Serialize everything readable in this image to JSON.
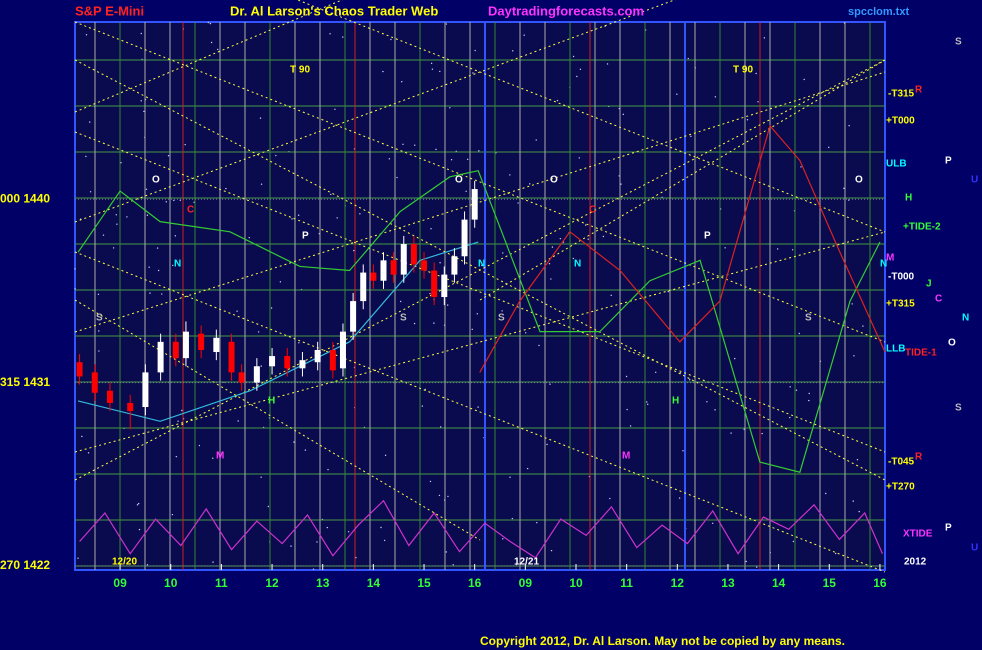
{
  "chart_data": {
    "type": "candlestick",
    "header": [
      "S&P E-Mini",
      "Dr. Al Larson's Chaos Trader Web",
      "Daytradingforecasts.com",
      "spcclom.txt"
    ],
    "copyright": "Copyright 2012, Dr. Al Larson. May not be copied by any means.",
    "xlim": [
      8.11,
      24.1
    ],
    "ylim": [
      1421.8,
      1448.7
    ],
    "xticks": [
      {
        "value": 9,
        "label": "09"
      },
      10,
      11,
      12,
      13,
      14,
      15,
      16,
      {
        "value": 17,
        "label": "09"
      },
      {
        "value": 18,
        "label": "10"
      },
      {
        "value": 19,
        "label": "11"
      },
      {
        "value": 20,
        "label": "12"
      },
      {
        "value": 21,
        "label": "13"
      },
      {
        "value": 22,
        "label": "14"
      },
      {
        "value": 23,
        "label": "15"
      },
      {
        "value": 24,
        "label": "16"
      }
    ],
    "yticks": [
      {
        "value": 1440,
        "label": "000 1440"
      },
      {
        "value": 1431,
        "label": "315 1431"
      },
      {
        "value": 1422,
        "label": "270 1422"
      }
    ],
    "candles": {
      "x": [
        8.2,
        8.5,
        8.8,
        9.2,
        9.5,
        9.8,
        10.1,
        10.3,
        10.6,
        10.9,
        11.2,
        11.4,
        11.7,
        12.0,
        12.3,
        12.6,
        12.9,
        13.2,
        13.4,
        13.6,
        13.8,
        14.0,
        14.2,
        14.4,
        14.6,
        14.8,
        15.0,
        15.2,
        15.4,
        15.6,
        15.8,
        16.0
      ],
      "open": [
        1432,
        1431.5,
        1430.6,
        1430,
        1429.8,
        1431.5,
        1433,
        1432.2,
        1433.4,
        1432.5,
        1433,
        1431.5,
        1431,
        1431.8,
        1432.3,
        1431.7,
        1432,
        1432.6,
        1431.7,
        1433.5,
        1435,
        1436.4,
        1436,
        1437,
        1436.3,
        1437.8,
        1437,
        1436.5,
        1435.2,
        1436.3,
        1437.2,
        1439
      ],
      "close": [
        1431.3,
        1430.5,
        1430,
        1429.6,
        1431.5,
        1433,
        1432.2,
        1433.5,
        1432.6,
        1433.2,
        1431.5,
        1431,
        1431.8,
        1432.3,
        1431.7,
        1432.1,
        1432.6,
        1431.6,
        1433.5,
        1435,
        1436.4,
        1436,
        1437,
        1436.3,
        1437.8,
        1436.8,
        1436.5,
        1435.2,
        1436.3,
        1437.2,
        1439,
        1440.5
      ],
      "high": [
        1432.4,
        1431.9,
        1431,
        1430.4,
        1431.9,
        1433.4,
        1433.4,
        1434,
        1433.8,
        1433.6,
        1433.4,
        1431.9,
        1432.2,
        1432.7,
        1432.7,
        1432.5,
        1433,
        1433,
        1433.9,
        1435.4,
        1436.8,
        1436.8,
        1437.4,
        1437.4,
        1438.2,
        1438.2,
        1437.4,
        1436.9,
        1436.7,
        1437.6,
        1439.4,
        1440.9
      ],
      "low": [
        1430.9,
        1430.1,
        1429.6,
        1428.7,
        1429.4,
        1431.1,
        1431.8,
        1431.8,
        1432.2,
        1432.1,
        1431.1,
        1430.6,
        1430.6,
        1431.4,
        1431.3,
        1431.3,
        1431.6,
        1431.2,
        1431.3,
        1433.1,
        1434.6,
        1435.6,
        1435.6,
        1435.9,
        1435.9,
        1436.4,
        1436.1,
        1434.8,
        1434.8,
        1435.9,
        1436.8,
        1438.6
      ],
      "up_color": "#ffffff",
      "down_color": "#ff0000"
    },
    "series": [
      {
        "color": "#33cc33",
        "x": [
          8.17,
          9,
          9.79,
          11.17,
          12.55,
          13.53,
          14.53,
          15.51,
          16.07,
          17.29,
          18.47,
          19.46,
          20.45,
          21.63,
          22.42,
          23.41,
          24
        ],
        "values": [
          1437.4,
          1440.4,
          1438.9,
          1438.4,
          1436.7,
          1436.5,
          1439.4,
          1441.1,
          1441.4,
          1433.5,
          1433.5,
          1436.0,
          1437.0,
          1427.1,
          1426.6,
          1435.0,
          1437.9
        ]
      },
      {
        "color": "#dd2222",
        "x": [
          16.1,
          16.89,
          17.88,
          18.87,
          20.05,
          20.84,
          21.83,
          22.42,
          23.21,
          24.1
        ],
        "values": [
          1431.5,
          1435.0,
          1438.4,
          1436.5,
          1433.0,
          1435.0,
          1443.6,
          1441.9,
          1437.4,
          1432.5
        ]
      },
      {
        "color": "#33bbdd",
        "x": [
          8.17,
          9.79,
          11.57,
          13.53,
          14.92,
          16.07
        ],
        "values": [
          1430.1,
          1429.1,
          1430.6,
          1433.0,
          1437.0,
          1437.9
        ]
      },
      {
        "color": "#cc33cc",
        "x": [
          8.2,
          8.7,
          9.2,
          9.7,
          10.2,
          10.7,
          11.2,
          11.7,
          12.2,
          12.7,
          13.2,
          13.7,
          14.2,
          14.7,
          15.2,
          15.7,
          16.2,
          16.7,
          17.2,
          17.7,
          18.2,
          18.7,
          19.2,
          19.7,
          20.2,
          20.7,
          21.2,
          21.7,
          22.2,
          22.7,
          23.2,
          23.7,
          24.05
        ],
        "values": [
          1423.2,
          1424.6,
          1422.6,
          1424.3,
          1423.0,
          1424.8,
          1422.8,
          1424.2,
          1423.1,
          1424.5,
          1422.5,
          1424.0,
          1425.2,
          1423.0,
          1424.6,
          1422.7,
          1424.1,
          1423.2,
          1422.4,
          1424.3,
          1423.5,
          1424.9,
          1422.9,
          1424.0,
          1423.1,
          1424.7,
          1422.6,
          1424.4,
          1423.8,
          1425.0,
          1423.3,
          1424.6,
          1422.6
        ]
      }
    ],
    "annotations": [
      {
        "text": "T   90",
        "color": "#ffff00"
      },
      {
        "text": "T   90",
        "color": "#ffff00"
      },
      {
        "text": "O",
        "color": "#ffffff"
      },
      {
        "text": "O",
        "color": "#ffffff"
      },
      {
        "text": "O",
        "color": "#ffffff"
      },
      {
        "text": "O",
        "color": "#ffffff"
      },
      {
        "text": "C",
        "color": "#ff2222"
      },
      {
        "text": "C",
        "color": "#ff2222"
      },
      {
        "text": "N",
        "color": "#00ffff"
      },
      {
        "text": "N",
        "color": "#00ffff"
      },
      {
        "text": "N",
        "color": "#00ffff"
      },
      {
        "text": "N",
        "color": "#00ffff"
      },
      {
        "text": "P",
        "color": "#ffffff"
      },
      {
        "text": "P",
        "color": "#ffffff"
      },
      {
        "text": "S",
        "color": "#bbbbbb"
      },
      {
        "text": "S",
        "color": "#bbbbbb"
      },
      {
        "text": "S",
        "color": "#bbbbbb"
      },
      {
        "text": "S",
        "color": "#bbbbbb"
      },
      {
        "text": "H",
        "color": "#33ff33"
      },
      {
        "text": "H",
        "color": "#33ff33"
      },
      {
        "text": "M",
        "color": "#ff33ff"
      },
      {
        "text": "M",
        "color": "#ff33ff"
      },
      {
        "text": "12/20",
        "color": "#ffff00"
      },
      {
        "text": "12/21",
        "color": "#ffffff"
      },
      {
        "text": "2012",
        "color": "#ffffff"
      },
      {
        "text": "-T315",
        "color": "#ffff00"
      },
      {
        "text": "+T000",
        "color": "#ffff00"
      },
      {
        "text": "ULB",
        "color": "#00ffff"
      },
      {
        "text": "H",
        "color": "#33ff33"
      },
      {
        "text": "+TIDE-2",
        "color": "#33ff33"
      },
      {
        "text": "M",
        "color": "#ff33ff"
      },
      {
        "text": "-T000",
        "color": "#ffffff"
      },
      {
        "text": "+T315",
        "color": "#ffff00"
      },
      {
        "text": "LLB",
        "color": "#00ffff"
      },
      {
        "text": "TIDE-1",
        "color": "#ff2222"
      },
      {
        "text": "-T045",
        "color": "#ffff00"
      },
      {
        "text": "+T270",
        "color": "#ffff00"
      },
      {
        "text": "XTIDE",
        "color": "#ff33ff"
      },
      {
        "text": "R",
        "color": "#ff2222"
      },
      {
        "text": "R",
        "color": "#ff2222"
      },
      {
        "text": "S",
        "color": "#bbbbbb"
      },
      {
        "text": "P",
        "color": "#ffffff"
      },
      {
        "text": "U",
        "color": "#3333ff"
      },
      {
        "text": "J",
        "color": "#33ff33"
      },
      {
        "text": "C",
        "color": "#ff33ff"
      },
      {
        "text": "N",
        "color": "#00ffff"
      },
      {
        "text": "O",
        "color": "#ffffff"
      },
      {
        "text": "S",
        "color": "#bbbbbb"
      },
      {
        "text": "P",
        "color": "#ffffff"
      },
      {
        "text": "U",
        "color": "#3333ff"
      }
    ]
  }
}
